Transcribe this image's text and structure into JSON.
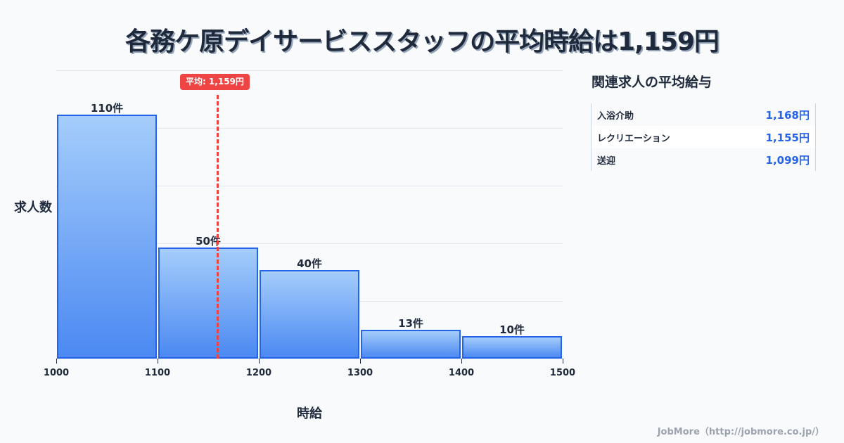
{
  "title": "各務ケ原デイサービススタッフの平均時給は1,159円",
  "chart_data": {
    "type": "bar",
    "title": "各務ケ原デイサービススタッフの平均時給は1,159円",
    "xlabel": "時給",
    "ylabel": "求人数",
    "bins": [
      {
        "from": 1000,
        "to": 1100,
        "count": 110,
        "label": "110件"
      },
      {
        "from": 1100,
        "to": 1200,
        "count": 50,
        "label": "50件"
      },
      {
        "from": 1200,
        "to": 1300,
        "count": 40,
        "label": "40件"
      },
      {
        "from": 1300,
        "to": 1400,
        "count": 13,
        "label": "13件"
      },
      {
        "from": 1400,
        "to": 1500,
        "count": 10,
        "label": "10件"
      }
    ],
    "categories": [
      "1000-1100",
      "1100-1200",
      "1200-1300",
      "1300-1400",
      "1400-1500"
    ],
    "values": [
      110,
      50,
      40,
      13,
      10
    ],
    "x_ticks": [
      "1000",
      "1100",
      "1200",
      "1300",
      "1400",
      "1500"
    ],
    "xlim": [
      1000,
      1500
    ],
    "ylim": [
      0,
      130
    ],
    "grid": true,
    "mean": {
      "value": 1159,
      "label": "平均: 1,159円",
      "color": "#ef4444"
    },
    "bar_color": "#4b89f2",
    "bar_border_color": "#2563eb"
  },
  "axis": {
    "y_label": "求人数",
    "x_label": "時給"
  },
  "related": {
    "title": "関連求人の平均給与",
    "items": [
      {
        "name": "入浴介助",
        "value": "1,168円"
      },
      {
        "name": "レクリエーション",
        "value": "1,155円"
      },
      {
        "name": "送迎",
        "value": "1,099円"
      }
    ]
  },
  "footer": "JobMore（http://jobmore.co.jp/）"
}
